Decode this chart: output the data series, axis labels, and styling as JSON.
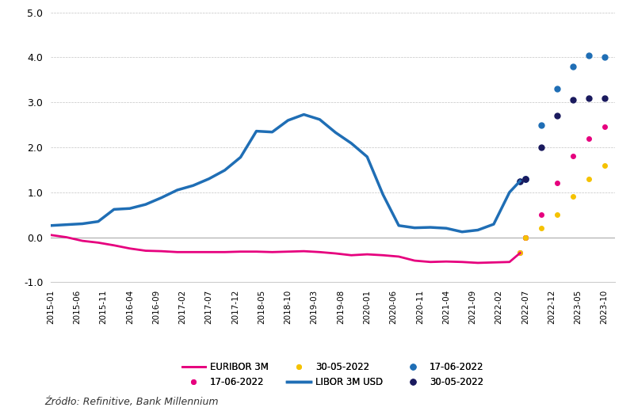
{
  "title": "",
  "xlabel": "",
  "ylabel": "",
  "source": "Źródło: Refinitive, Bank Millennium",
  "ylim": [
    -1.0,
    5.0
  ],
  "yticks": [
    -1.0,
    0.0,
    1.0,
    2.0,
    3.0,
    4.0,
    5.0
  ],
  "background_color": "#ffffff",
  "euribor_color": "#e6007e",
  "libor_color": "#1f6eb5",
  "euribor_forecast_17": "#e6007e",
  "euribor_forecast_30": "#f5c200",
  "libor_forecast_17": "#1f6eb5",
  "libor_forecast_30": "#1a1a5e",
  "euribor_3m": {
    "dates": [
      "2015-01",
      "2015-04",
      "2015-07",
      "2015-10",
      "2016-01",
      "2016-04",
      "2016-07",
      "2016-10",
      "2017-01",
      "2017-04",
      "2017-07",
      "2017-10",
      "2018-01",
      "2018-04",
      "2018-07",
      "2018-10",
      "2019-01",
      "2019-04",
      "2019-07",
      "2019-10",
      "2020-01",
      "2020-04",
      "2020-07",
      "2020-10",
      "2021-01",
      "2021-04",
      "2021-07",
      "2021-10",
      "2022-01",
      "2022-04",
      "2022-06"
    ],
    "values": [
      0.05,
      0.0,
      -0.08,
      -0.12,
      -0.18,
      -0.25,
      -0.3,
      -0.31,
      -0.33,
      -0.33,
      -0.33,
      -0.33,
      -0.32,
      -0.32,
      -0.33,
      -0.32,
      -0.31,
      -0.33,
      -0.36,
      -0.4,
      -0.38,
      -0.4,
      -0.43,
      -0.52,
      -0.55,
      -0.54,
      -0.55,
      -0.57,
      -0.56,
      -0.55,
      -0.35
    ]
  },
  "libor_3m_usd": {
    "dates": [
      "2015-01",
      "2015-04",
      "2015-07",
      "2015-10",
      "2016-01",
      "2016-04",
      "2016-07",
      "2016-10",
      "2017-01",
      "2017-04",
      "2017-07",
      "2017-10",
      "2018-01",
      "2018-04",
      "2018-07",
      "2018-10",
      "2019-01",
      "2019-04",
      "2019-07",
      "2019-10",
      "2020-01",
      "2020-04",
      "2020-07",
      "2020-10",
      "2021-01",
      "2021-04",
      "2021-07",
      "2021-10",
      "2022-01",
      "2022-04",
      "2022-06"
    ],
    "values": [
      0.26,
      0.28,
      0.3,
      0.35,
      0.62,
      0.64,
      0.73,
      0.88,
      1.05,
      1.15,
      1.3,
      1.49,
      1.78,
      2.36,
      2.34,
      2.6,
      2.73,
      2.62,
      2.33,
      2.09,
      1.79,
      0.95,
      0.26,
      0.21,
      0.22,
      0.2,
      0.12,
      0.16,
      0.29,
      1.0,
      1.25
    ]
  },
  "euribor_forecast_17_data": {
    "dates": [
      "2022-07",
      "2022-10",
      "2023-01",
      "2023-04",
      "2023-07",
      "2023-10"
    ],
    "values": [
      0.0,
      0.5,
      1.2,
      1.8,
      2.2,
      2.45
    ]
  },
  "euribor_forecast_30_data": {
    "dates": [
      "2022-07",
      "2022-10",
      "2023-01",
      "2023-04",
      "2023-07",
      "2023-10"
    ],
    "values": [
      0.0,
      0.2,
      0.5,
      0.9,
      1.3,
      1.6
    ]
  },
  "libor_forecast_17_data": {
    "dates": [
      "2022-07",
      "2022-10",
      "2023-01",
      "2023-04",
      "2023-07",
      "2023-10"
    ],
    "values": [
      1.3,
      2.5,
      3.3,
      3.8,
      4.05,
      4.0
    ]
  },
  "libor_forecast_30_data": {
    "dates": [
      "2022-07",
      "2022-10",
      "2023-01",
      "2023-04",
      "2023-07",
      "2023-10"
    ],
    "values": [
      1.3,
      2.0,
      2.7,
      3.05,
      3.1,
      3.1
    ]
  },
  "xtick_labels": [
    "2015-01",
    "2015-06",
    "2015-11",
    "2016-04",
    "2016-09",
    "2017-02",
    "2017-07",
    "2017-12",
    "2018-05",
    "2018-10",
    "2019-03",
    "2019-08",
    "2020-01",
    "2020-06",
    "2020-11",
    "2021-04",
    "2021-09",
    "2022-02",
    "2022-07",
    "2022-12",
    "2023-05",
    "2023-10"
  ]
}
